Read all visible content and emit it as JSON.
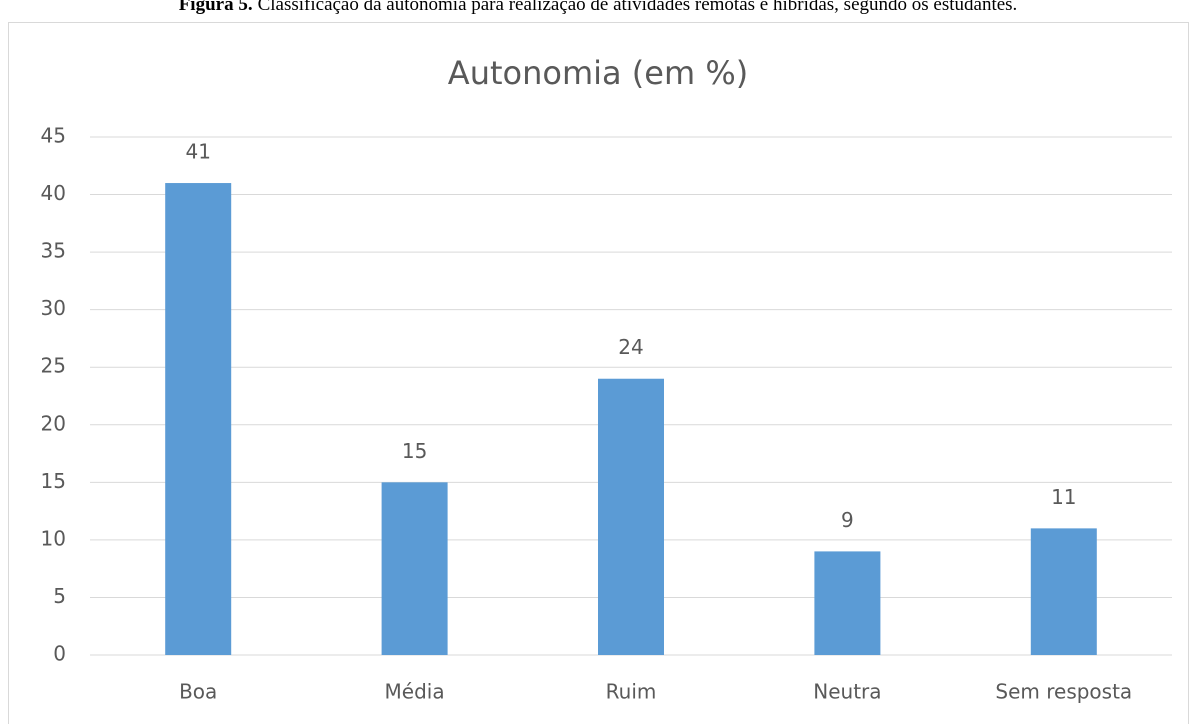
{
  "caption": {
    "label": "Figura 5.",
    "text": "Classificação da autonomia para realização de atividades remotas e híbridas, segundo os estudantes."
  },
  "chart_data": {
    "type": "bar",
    "title": "Autonomia (em %)",
    "categories": [
      "Boa",
      "Média",
      "Ruim",
      "Neutra",
      "Sem resposta"
    ],
    "values": [
      41,
      15,
      24,
      9,
      11
    ],
    "color": "#5b9bd5",
    "ylim": [
      0,
      45
    ],
    "yticks": [
      0,
      5,
      10,
      15,
      20,
      25,
      30,
      35,
      40,
      45
    ],
    "grid": true
  }
}
